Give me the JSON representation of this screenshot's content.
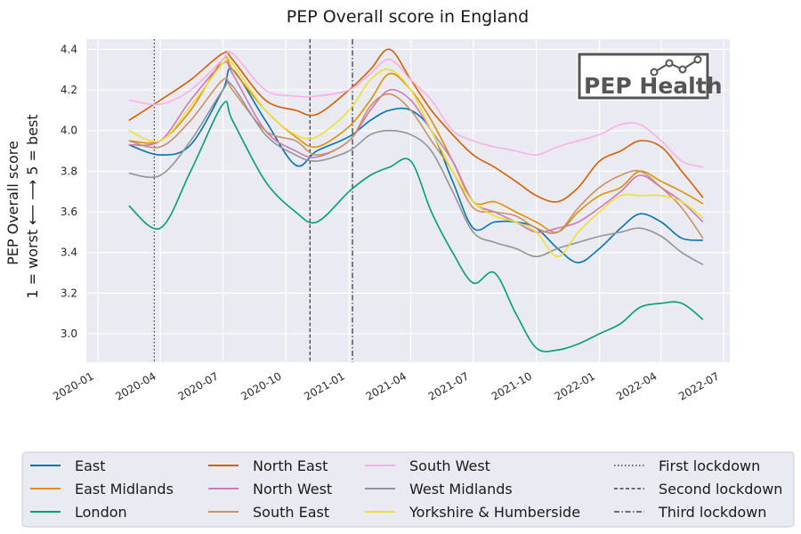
{
  "chart_data": {
    "type": "line",
    "title": "PEP Overall score in England",
    "ylabel_lines": [
      "PEP Overall score",
      "1 = worst  ⟵      ⟶  5 = best"
    ],
    "xlabel": "",
    "ylim": [
      2.86,
      4.45
    ],
    "yticks": [
      3.0,
      3.2,
      3.4,
      3.6,
      3.8,
      4.0,
      4.2,
      4.4
    ],
    "xlim": [
      "2019-12-15",
      "2022-07-10"
    ],
    "xticks": [
      "2020-01",
      "2020-04",
      "2020-07",
      "2020-10",
      "2021-01",
      "2021-04",
      "2021-07",
      "2021-10",
      "2022-01",
      "2022-04",
      "2022-07"
    ],
    "grid": true,
    "legend_position": "bottom",
    "x": [
      "2020-02-15",
      "2020-04-01",
      "2020-05-15",
      "2020-07-01",
      "2020-07-15",
      "2020-09-01",
      "2020-10-15",
      "2020-11-15",
      "2021-01-01",
      "2021-02-01",
      "2021-03-01",
      "2021-04-01",
      "2021-05-01",
      "2021-06-01",
      "2021-07-01",
      "2021-08-01",
      "2021-09-01",
      "2021-10-01",
      "2021-11-01",
      "2021-12-01",
      "2022-01-01",
      "2022-02-01",
      "2022-03-01",
      "2022-04-01",
      "2022-05-01",
      "2022-06-01"
    ],
    "series": [
      {
        "name": "East",
        "color": "#0173b2",
        "values": [
          3.93,
          3.88,
          3.93,
          4.2,
          4.3,
          4.05,
          3.83,
          3.9,
          3.97,
          4.05,
          4.1,
          4.1,
          4.0,
          3.75,
          3.52,
          3.55,
          3.55,
          3.52,
          3.42,
          3.35,
          3.42,
          3.52,
          3.59,
          3.55,
          3.47,
          3.46
        ]
      },
      {
        "name": "East Midlands",
        "color": "#de8f05",
        "values": [
          3.95,
          3.95,
          4.1,
          4.35,
          4.3,
          4.1,
          3.97,
          3.92,
          4.02,
          4.15,
          4.28,
          4.2,
          4.05,
          3.85,
          3.65,
          3.65,
          3.6,
          3.55,
          3.5,
          3.6,
          3.68,
          3.72,
          3.8,
          3.75,
          3.7,
          3.64
        ]
      },
      {
        "name": "London",
        "color": "#029e73",
        "values": [
          3.63,
          3.52,
          3.8,
          4.13,
          4.05,
          3.75,
          3.6,
          3.55,
          3.7,
          3.78,
          3.82,
          3.85,
          3.6,
          3.4,
          3.25,
          3.3,
          3.1,
          2.93,
          2.92,
          2.95,
          3.0,
          3.05,
          3.13,
          3.15,
          3.15,
          3.07
        ]
      },
      {
        "name": "North East",
        "color": "#d55e00",
        "values": [
          4.05,
          4.15,
          4.25,
          4.38,
          4.35,
          4.15,
          4.1,
          4.08,
          4.2,
          4.3,
          4.4,
          4.25,
          4.1,
          3.98,
          3.88,
          3.82,
          3.75,
          3.68,
          3.65,
          3.72,
          3.85,
          3.9,
          3.95,
          3.92,
          3.8,
          3.67
        ]
      },
      {
        "name": "North West",
        "color": "#cc78bc",
        "values": [
          3.93,
          3.95,
          4.15,
          4.33,
          4.28,
          4.0,
          3.9,
          3.87,
          3.95,
          4.1,
          4.2,
          4.15,
          4.0,
          3.85,
          3.65,
          3.6,
          3.55,
          3.5,
          3.52,
          3.55,
          3.62,
          3.7,
          3.78,
          3.72,
          3.65,
          3.55
        ]
      },
      {
        "name": "South East",
        "color": "#ca9161",
        "values": [
          3.95,
          3.92,
          4.05,
          4.25,
          4.2,
          4.0,
          3.95,
          3.88,
          3.95,
          4.12,
          4.18,
          4.1,
          3.95,
          3.8,
          3.62,
          3.6,
          3.58,
          3.52,
          3.5,
          3.62,
          3.72,
          3.78,
          3.8,
          3.72,
          3.62,
          3.47
        ]
      },
      {
        "name": "South West",
        "color": "#fbafe4",
        "values": [
          4.15,
          4.13,
          4.2,
          4.35,
          4.38,
          4.2,
          4.17,
          4.17,
          4.2,
          4.28,
          4.35,
          4.25,
          4.15,
          4.0,
          3.95,
          3.92,
          3.9,
          3.88,
          3.92,
          3.95,
          3.98,
          4.03,
          4.03,
          3.95,
          3.85,
          3.82
        ]
      },
      {
        "name": "West Midlands",
        "color": "#949494",
        "values": [
          3.79,
          3.78,
          3.95,
          4.2,
          4.22,
          3.98,
          3.88,
          3.85,
          3.9,
          3.98,
          4.0,
          3.98,
          3.9,
          3.7,
          3.5,
          3.45,
          3.42,
          3.38,
          3.42,
          3.45,
          3.48,
          3.5,
          3.52,
          3.48,
          3.4,
          3.34
        ]
      },
      {
        "name": "Yorkshire & Humberside",
        "color": "#ece133",
        "values": [
          4.0,
          3.95,
          4.12,
          4.33,
          4.33,
          4.1,
          3.98,
          3.97,
          4.1,
          4.25,
          4.3,
          4.2,
          4.0,
          3.8,
          3.65,
          3.58,
          3.55,
          3.5,
          3.38,
          3.5,
          3.6,
          3.68,
          3.68,
          3.68,
          3.65,
          3.57
        ]
      }
    ],
    "lockdowns": [
      {
        "name": "First lockdown",
        "date": "2020-03-23",
        "style": "dotted"
      },
      {
        "name": "Second lockdown",
        "date": "2020-11-05",
        "style": "dashed"
      },
      {
        "name": "Third lockdown",
        "date": "2021-01-06",
        "style": "dashdot"
      }
    ]
  },
  "logo": {
    "text": "PEP Health",
    "icon": "line-chart-icon"
  }
}
